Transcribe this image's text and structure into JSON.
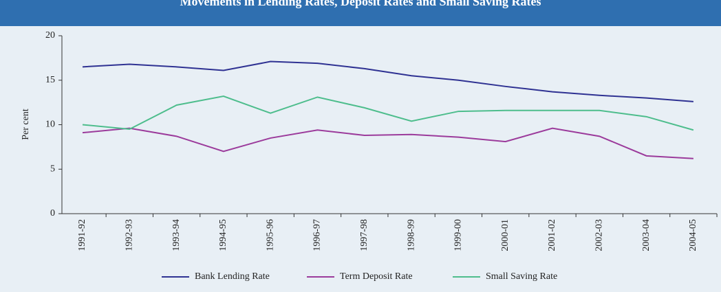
{
  "chart_data": {
    "type": "line",
    "title": "Movements in Lending Rates, Deposit Rates and Small Saving Rates",
    "ylabel": "Per cent",
    "categories": [
      "1991-92",
      "1992-93",
      "1993-94",
      "1994-95",
      "1995-96",
      "1996-97",
      "1997-98",
      "1998-99",
      "1999-00",
      "2000-01",
      "2001-02",
      "2002-03",
      "2003-04",
      "2004-05"
    ],
    "series": [
      {
        "name": "Bank Lending Rate",
        "color": "#2e3192",
        "values": [
          16.5,
          16.8,
          16.5,
          16.1,
          17.1,
          16.9,
          16.3,
          15.5,
          15.0,
          14.3,
          13.7,
          13.3,
          13.0,
          12.6
        ]
      },
      {
        "name": "Term Deposit Rate",
        "color": "#9b3a9b",
        "values": [
          9.1,
          9.6,
          8.7,
          7.0,
          8.5,
          9.4,
          8.8,
          8.9,
          8.6,
          8.1,
          9.6,
          8.7,
          6.5,
          6.2
        ]
      },
      {
        "name": "Small Saving Rate",
        "color": "#4dbd8c",
        "values": [
          10.0,
          9.5,
          12.2,
          13.2,
          11.3,
          13.1,
          11.9,
          10.4,
          11.5,
          11.6,
          11.6,
          11.6,
          10.9,
          9.4
        ]
      }
    ],
    "ylim": [
      0,
      20
    ],
    "yticks": [
      0,
      5,
      10,
      15,
      20
    ],
    "legend": "bottom"
  }
}
